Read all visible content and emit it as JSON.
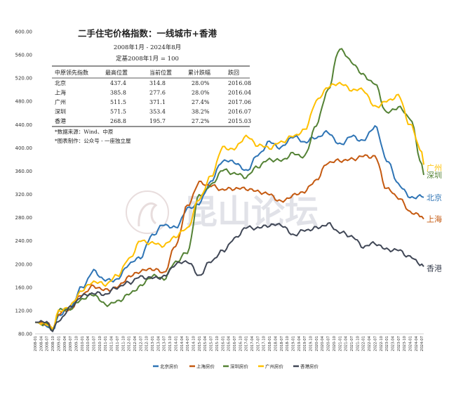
{
  "chart_data": {
    "type": "line",
    "title": "二手住宅价格指数：一线城市+香港",
    "subtitle": "2008年1月 - 2024年8月",
    "base_note": "定基2008年1月 = 100",
    "y_ticks": [
      "80.00",
      "120.00",
      "160.00",
      "200.00",
      "240.00",
      "280.00",
      "320.00",
      "360.00",
      "400.00",
      "440.00",
      "480.00",
      "520.00",
      "560.00",
      "600.00"
    ],
    "ylim": [
      80,
      600
    ],
    "grid": false,
    "legend_position": "bottom",
    "x_ticks": [
      "2008-01",
      "2008-04",
      "2008-07",
      "2008-10",
      "2009-01",
      "2009-04",
      "2009-07",
      "2009-10",
      "2010-01",
      "2010-04",
      "2010-07",
      "2010-10",
      "2011-01",
      "2011-04",
      "2011-07",
      "2011-10",
      "2012-01",
      "2012-04",
      "2012-07",
      "2012-10",
      "2013-01",
      "2013-04",
      "2013-07",
      "2013-10",
      "2014-01",
      "2014-04",
      "2014-07",
      "2014-10",
      "2015-01",
      "2015-04",
      "2015-07",
      "2015-10",
      "2016-01",
      "2016-04",
      "2016-07",
      "2016-10",
      "2017-01",
      "2017-04",
      "2017-07",
      "2017-10",
      "2018-01",
      "2018-04",
      "2018-07",
      "2018-10",
      "2019-01",
      "2019-04",
      "2019-07",
      "2019-10",
      "2020-01",
      "2020-04",
      "2020-07",
      "2020-10",
      "2021-01",
      "2021-04",
      "2021-07",
      "2021-10",
      "2022-01",
      "2022-04",
      "2022-07",
      "2022-10",
      "2023-01",
      "2023-04",
      "2023-07",
      "2023-10",
      "2024-01",
      "2024-04",
      "2024-07"
    ],
    "x_anchor_months": [
      0,
      6,
      9,
      12,
      18,
      24,
      30,
      36,
      42,
      48,
      54,
      60,
      66,
      72,
      78,
      84,
      90,
      96,
      102,
      108,
      114,
      120,
      126,
      132,
      138,
      144,
      150,
      156,
      162,
      168,
      174,
      180,
      186,
      192,
      198,
      199
    ],
    "series": [
      {
        "name": "北京房价",
        "color": "#2e74b5",
        "end_label": "北京",
        "values": [
          100,
          95,
          84,
          112,
          125,
          160,
          188,
          172,
          173,
          200,
          212,
          250,
          268,
          262,
          295,
          304,
          342,
          378,
          376,
          360,
          387,
          410,
          400,
          420,
          410,
          418,
          427,
          405,
          420,
          412,
          437.4,
          380,
          338,
          314.8,
          316,
          314.8
        ]
      },
      {
        "name": "上海房价",
        "color": "#c55a11",
        "end_label": "上海",
        "values": [
          100,
          98,
          88,
          115,
          122,
          148,
          162,
          155,
          160,
          178,
          188,
          192,
          185,
          232,
          300,
          340,
          335,
          328,
          330,
          330,
          325,
          320,
          307,
          318,
          325,
          345,
          375,
          378,
          380,
          385.8,
          385,
          330,
          315,
          290,
          282,
          277.6
        ]
      },
      {
        "name": "深圳房价",
        "color": "#548235",
        "end_label": "深圳",
        "values": [
          100,
          96,
          86,
          120,
          123,
          140,
          148,
          130,
          135,
          148,
          162,
          180,
          175,
          204,
          220,
          318,
          335,
          362,
          356,
          350,
          368,
          380,
          378,
          390,
          385,
          440,
          500,
          571.5,
          548,
          525,
          510,
          460,
          470,
          452,
          372,
          353.4
        ]
      },
      {
        "name": "广州房价",
        "color": "#ffc000",
        "end_label": "广州",
        "values": [
          100,
          96,
          90,
          118,
          128,
          155,
          170,
          165,
          180,
          208,
          240,
          236,
          232,
          248,
          262,
          312,
          350,
          400,
          398,
          420,
          405,
          400,
          410,
          420,
          430,
          480,
          505,
          511.5,
          500,
          500,
          470,
          480,
          490,
          440,
          393,
          371.1
        ]
      },
      {
        "name": "香港房价",
        "color": "#404756",
        "end_label": "香港",
        "values": [
          100,
          100,
          86,
          102,
          125,
          145,
          150,
          148,
          160,
          168,
          178,
          176,
          178,
          200,
          205,
          180,
          205,
          222,
          243,
          263,
          262,
          267,
          268,
          250,
          258,
          262,
          268.8,
          255,
          248,
          230,
          236,
          225,
          224,
          212,
          200,
          195.7
        ]
      }
    ]
  },
  "table": {
    "headers": [
      "中原领先指数",
      "最高位置",
      "当前位置",
      "累计跌幅",
      "跌回"
    ],
    "rows": [
      [
        "北京",
        "437.4",
        "314.8",
        "28.0%",
        "2016.08"
      ],
      [
        "上海",
        "385.8",
        "277.6",
        "28.0%",
        "2016.04"
      ],
      [
        "广州",
        "511.5",
        "371.1",
        "27.4%",
        "2017.06"
      ],
      [
        "深圳",
        "571.5",
        "353.4",
        "38.2%",
        "2016.07"
      ],
      [
        "香港",
        "268.8",
        "195.7",
        "27.2%",
        "2015.03"
      ]
    ]
  },
  "notes": [
    "*数据来源：Wind、中原",
    "*图表制作：公众号 - 一座独立屋"
  ],
  "watermark": "昆山论坛"
}
